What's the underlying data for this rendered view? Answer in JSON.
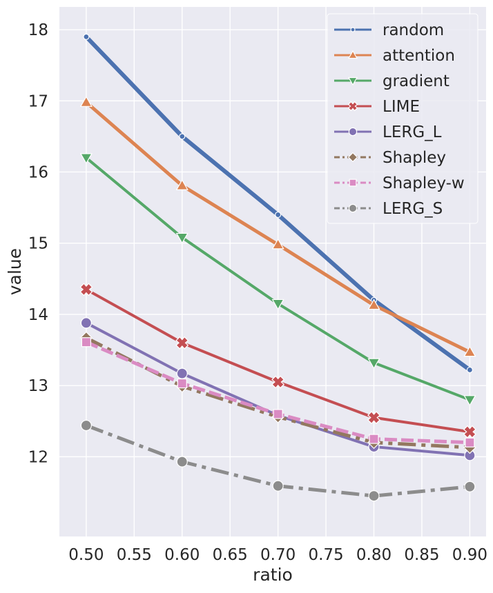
{
  "chart_data": {
    "type": "line",
    "title": "",
    "xlabel": "ratio",
    "ylabel": "value",
    "xlim": [
      0.472,
      0.917
    ],
    "ylim": [
      10.88,
      18.32
    ],
    "xticks": [
      "0.50",
      "0.55",
      "0.60",
      "0.65",
      "0.70",
      "0.75",
      "0.80",
      "0.85",
      "0.90"
    ],
    "yticks": [
      "12",
      "13",
      "14",
      "15",
      "16",
      "17",
      "18"
    ],
    "grid": true,
    "background": "#eaeaf2",
    "legend_position": "top-right",
    "x": [
      0.5,
      0.6,
      0.7,
      0.8,
      0.9
    ],
    "series": [
      {
        "name": "random",
        "values": [
          17.9,
          16.5,
          15.4,
          14.2,
          13.22
        ],
        "color": "#4c72b0",
        "marker": "circle-small",
        "dash": "solid",
        "width": 6
      },
      {
        "name": "attention",
        "values": [
          16.98,
          15.81,
          14.98,
          14.13,
          13.47
        ],
        "color": "#dd8452",
        "marker": "triangle-up",
        "dash": "solid",
        "width": 5
      },
      {
        "name": "gradient",
        "values": [
          16.2,
          15.08,
          14.15,
          13.32,
          12.8
        ],
        "color": "#55a868",
        "marker": "triangle-down",
        "dash": "solid",
        "width": 4
      },
      {
        "name": "LIME",
        "values": [
          14.35,
          13.6,
          13.05,
          12.55,
          12.35
        ],
        "color": "#c44e52",
        "marker": "x",
        "dash": "solid",
        "width": 4
      },
      {
        "name": "LERG_L",
        "values": [
          13.88,
          13.17,
          12.58,
          12.14,
          12.02
        ],
        "color": "#8172b3",
        "marker": "circle",
        "dash": "solid",
        "width": 4
      },
      {
        "name": "Shapley",
        "values": [
          13.67,
          12.99,
          12.56,
          12.2,
          12.13
        ],
        "color": "#937860",
        "marker": "diamond",
        "dash": "dashdot",
        "width": 5
      },
      {
        "name": "Shapley-w",
        "values": [
          13.61,
          13.03,
          12.6,
          12.25,
          12.2
        ],
        "color": "#da8bc3",
        "marker": "square",
        "dash": "dashed",
        "width": 5
      },
      {
        "name": "LERG_S",
        "values": [
          12.44,
          11.93,
          11.59,
          11.45,
          11.58
        ],
        "color": "#8c8c8c",
        "marker": "circle",
        "dash": "dashdot",
        "width": 5
      }
    ]
  }
}
